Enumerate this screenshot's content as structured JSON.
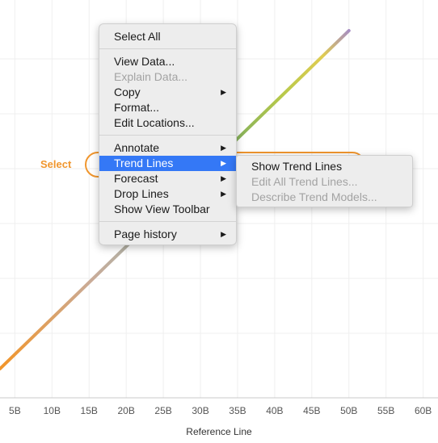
{
  "chart_data": {
    "type": "line",
    "title": "",
    "xlabel": "Reference Line",
    "ylabel": "",
    "x_ticks": [
      "5B",
      "10B",
      "15B",
      "20B",
      "25B",
      "30B",
      "35B",
      "40B",
      "45B",
      "50B",
      "55B",
      "60B"
    ],
    "xlim": [
      3,
      62
    ],
    "x": [
      3,
      50
    ],
    "y": [
      0,
      1
    ],
    "grid": true
  },
  "context_menu": {
    "items": [
      {
        "label": "Select All",
        "enabled": true,
        "submenu": false
      },
      {
        "label": "View Data...",
        "enabled": true,
        "submenu": false
      },
      {
        "label": "Explain Data...",
        "enabled": false,
        "submenu": false
      },
      {
        "label": "Copy",
        "enabled": true,
        "submenu": true
      },
      {
        "label": "Format...",
        "enabled": true,
        "submenu": false
      },
      {
        "label": "Edit Locations...",
        "enabled": true,
        "submenu": false
      },
      {
        "label": "Annotate",
        "enabled": true,
        "submenu": true
      },
      {
        "label": "Trend Lines",
        "enabled": true,
        "submenu": true,
        "highlighted": true
      },
      {
        "label": "Forecast",
        "enabled": true,
        "submenu": true
      },
      {
        "label": "Drop Lines",
        "enabled": true,
        "submenu": true
      },
      {
        "label": "Show View Toolbar",
        "enabled": true,
        "submenu": false
      },
      {
        "label": "Page history",
        "enabled": true,
        "submenu": true
      }
    ],
    "arrow_glyph": "▶"
  },
  "submenu": {
    "items": [
      {
        "label": "Show Trend Lines",
        "enabled": true
      },
      {
        "label": "Edit All Trend Lines...",
        "enabled": false
      },
      {
        "label": "Describe Trend Models...",
        "enabled": false
      }
    ]
  },
  "callout": {
    "label": "Select"
  },
  "colors": {
    "accent": "#f0962e",
    "highlight": "#3478f6"
  }
}
